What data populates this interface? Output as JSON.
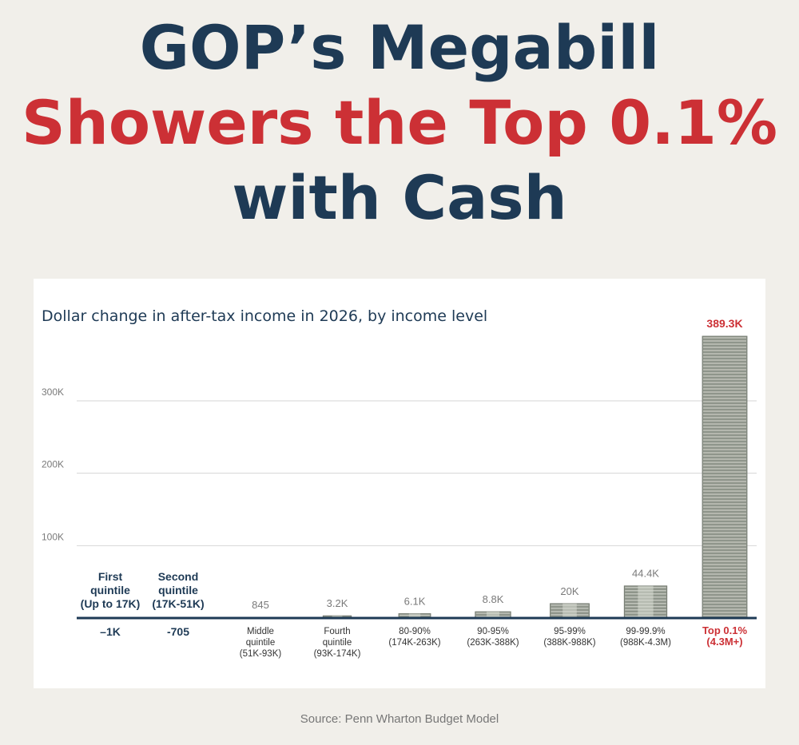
{
  "headline": {
    "line1": "GOP’s Megabill",
    "line2": "Showers the Top 0.1%",
    "line3": "with Cash"
  },
  "colors": {
    "navy": "#1e3a55",
    "red": "#cc3035",
    "axis": "#1e3a55",
    "grid": "#d6d6d6",
    "cash": "#8f958b",
    "cash_light": "#c9ccc4",
    "muted": "#7a7a7a"
  },
  "source": "Source: Penn Wharton Budget Model",
  "chart_data": {
    "type": "bar",
    "title": "Dollar change in after-tax income in 2026, by income level",
    "ylim": [
      0,
      389300
    ],
    "grid": true,
    "y_ticks": [
      {
        "value": 100000,
        "label": "100K"
      },
      {
        "value": 200000,
        "label": "200K"
      },
      {
        "value": 300000,
        "label": "300K"
      }
    ],
    "categories": [
      {
        "name": [
          "First",
          "quintile"
        ],
        "range": "(Up to 17K)",
        "value": -1000,
        "label": "–1K",
        "style": "negative"
      },
      {
        "name": [
          "Second",
          "quintile"
        ],
        "range": "(17K-51K)",
        "value": -705,
        "label": "-705",
        "style": "negative"
      },
      {
        "name": [
          "Middle",
          "quintile"
        ],
        "range": "(51K-93K)",
        "value": 845,
        "label": "845",
        "style": "normal"
      },
      {
        "name": [
          "Fourth",
          "quintile"
        ],
        "range": "(93K-174K)",
        "value": 3200,
        "label": "3.2K",
        "style": "normal"
      },
      {
        "name": [
          "80-90%"
        ],
        "range": "(174K-263K)",
        "value": 6100,
        "label": "6.1K",
        "style": "normal"
      },
      {
        "name": [
          "90-95%"
        ],
        "range": "(263K-388K)",
        "value": 8800,
        "label": "8.8K",
        "style": "normal"
      },
      {
        "name": [
          "95-99%"
        ],
        "range": "(388K-988K)",
        "value": 20000,
        "label": "20K",
        "style": "normal"
      },
      {
        "name": [
          "99-99.9%"
        ],
        "range": "(988K-4.3M)",
        "value": 44400,
        "label": "44.4K",
        "style": "normal"
      },
      {
        "name": [
          "Top 0.1%"
        ],
        "range": "(4.3M+)",
        "value": 389300,
        "label": "389.3K",
        "style": "highlight"
      }
    ]
  }
}
